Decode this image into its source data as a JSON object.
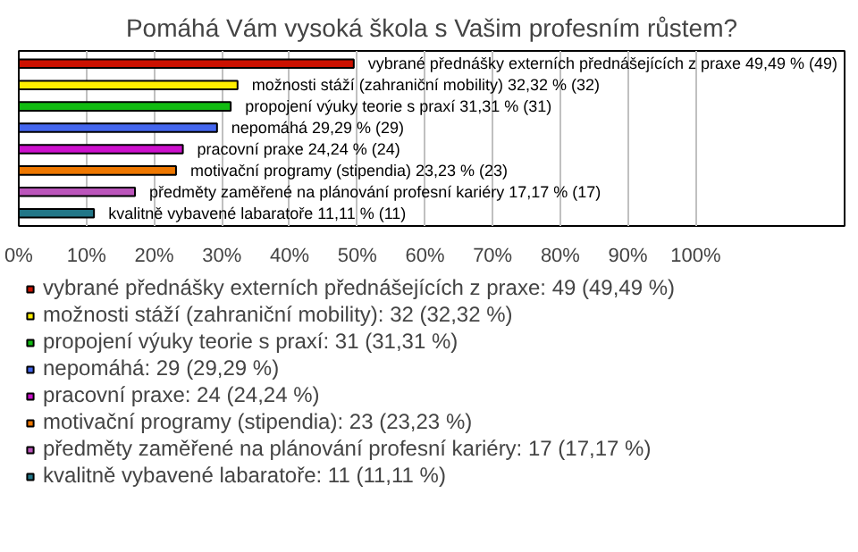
{
  "chart_data": {
    "type": "bar",
    "orientation": "horizontal",
    "title": "Pomáhá Vám vysoká škola s Vašim profesním růstem?",
    "categories": [
      null,
      null,
      null,
      null,
      null,
      null,
      null,
      null
    ],
    "series": [
      {
        "name": "vybrané přednášky externích přednášejících z praxe: 49 (49,49 %)",
        "color": "#cc1100",
        "values": [
          49.49,
          null,
          null,
          null,
          null,
          null,
          null,
          null
        ],
        "value_labels": [
          "vybrané přednášky externích přednášejících z praxe 49,49 % (49)",
          null,
          null,
          null,
          null,
          null,
          null,
          null
        ]
      },
      {
        "name": "možnosti stáží (zahraniční mobility): 32 (32,32 %)",
        "color": "#ffee00",
        "values": [
          null,
          32.32,
          null,
          null,
          null,
          null,
          null,
          null
        ],
        "value_labels": [
          null,
          "možnosti stáží (zahraniční mobility) 32,32 % (32)",
          null,
          null,
          null,
          null,
          null,
          null
        ]
      },
      {
        "name": "propojení výuky teorie s praxí: 31 (31,31 %)",
        "color": "#11bb11",
        "values": [
          null,
          null,
          31.31,
          null,
          null,
          null,
          null,
          null
        ],
        "value_labels": [
          null,
          null,
          "propojení výuky teorie s praxí 31,31 % (31)",
          null,
          null,
          null,
          null,
          null
        ]
      },
      {
        "name": "nepomáhá: 29 (29,29 %)",
        "color": "#4466ee",
        "values": [
          null,
          null,
          null,
          29.29,
          null,
          null,
          null,
          null
        ],
        "value_labels": [
          null,
          null,
          null,
          "nepomáhá 29,29 % (29)",
          null,
          null,
          null,
          null
        ]
      },
      {
        "name": "pracovní praxe: 24 (24,24 %)",
        "color": "#cc11cc",
        "values": [
          null,
          null,
          null,
          null,
          24.24,
          null,
          null,
          null
        ],
        "value_labels": [
          null,
          null,
          null,
          null,
          "pracovní praxe 24,24 % (24)",
          null,
          null,
          null
        ]
      },
      {
        "name": "motivační programy (stipendia): 23 (23,23 %)",
        "color": "#ee7700",
        "values": [
          null,
          null,
          null,
          null,
          null,
          23.23,
          null,
          null
        ],
        "value_labels": [
          null,
          null,
          null,
          null,
          null,
          "motivační programy (stipendia) 23,23 % (23)",
          null,
          null
        ]
      },
      {
        "name": "předměty zaměřené na plánování profesní kariéry: 17 (17,17 %)",
        "color": "#bb55bb",
        "values": [
          null,
          null,
          null,
          null,
          null,
          null,
          17.17,
          null
        ],
        "value_labels": [
          null,
          null,
          null,
          null,
          null,
          null,
          "předměty zaměřené na plánování profesní kariéry 17,17 % (17)",
          null
        ]
      },
      {
        "name": "kvalitně vybavené labaratoře: 11 (11,11 %)",
        "color": "#227788",
        "values": [
          null,
          null,
          null,
          null,
          null,
          null,
          null,
          11.11
        ],
        "value_labels": [
          null,
          null,
          null,
          null,
          null,
          null,
          null,
          "kvalitně vybavené labaratoře 11,11 % (11)"
        ]
      }
    ],
    "xlim": [
      0,
      122
    ],
    "xticks": [
      {
        "value": 0,
        "label": "0%"
      },
      {
        "value": 10,
        "label": "10%"
      },
      {
        "value": 20,
        "label": "20%"
      },
      {
        "value": 30,
        "label": "30%"
      },
      {
        "value": 40,
        "label": "40%"
      },
      {
        "value": 50,
        "label": "50%"
      },
      {
        "value": 60,
        "label": "60%"
      },
      {
        "value": 70,
        "label": "70%"
      },
      {
        "value": 80,
        "label": "80%"
      },
      {
        "value": 90,
        "label": "90%"
      },
      {
        "value": 100,
        "label": "100%"
      }
    ],
    "grid": "x",
    "legend": "bottom",
    "tick_labels": "x"
  }
}
